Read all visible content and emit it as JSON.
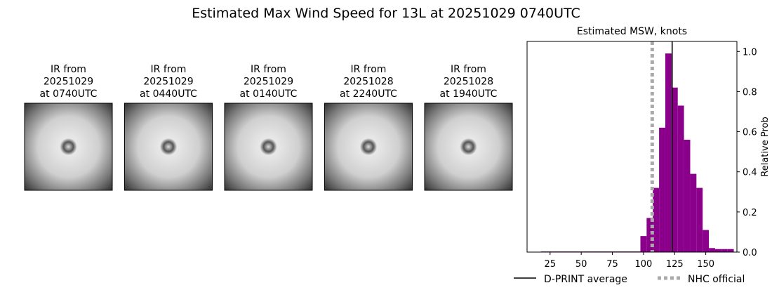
{
  "title": "Estimated Max Wind Speed for 13L at 20251029 0740UTC",
  "panels": [
    {
      "label": [
        "IR from",
        "20251029",
        "at 0740UTC"
      ]
    },
    {
      "label": [
        "IR from",
        "20251029",
        "at 0440UTC"
      ]
    },
    {
      "label": [
        "IR from",
        "20251029",
        "at 0140UTC"
      ]
    },
    {
      "label": [
        "IR from",
        "20251028",
        "at 2240UTC"
      ]
    },
    {
      "label": [
        "IR from",
        "20251028",
        "at 1940UTC"
      ]
    }
  ],
  "chart_data": {
    "type": "histogram",
    "title": "Estimated MSW, knots",
    "y_label": "Relative Prob",
    "color": "#8b008b",
    "bins": [
      17.5,
      22.5,
      27.5,
      32.5,
      37.5,
      42.5,
      47.5,
      52.5,
      57.5,
      62.5,
      67.5,
      72.5,
      77.5,
      82.5,
      87.5,
      92.5,
      97.5,
      102.5,
      107.5,
      112.5,
      117.5,
      122.5,
      127.5,
      132.5,
      137.5,
      142.5,
      147.5,
      152.5,
      157.5,
      162.5,
      167.5,
      172.5
    ],
    "counts": [
      0.003,
      0.003,
      0.003,
      0.003,
      0.003,
      0.003,
      0.003,
      0.003,
      0.003,
      0.003,
      0.003,
      0.003,
      0.003,
      0.003,
      0.003,
      0.003,
      0.08,
      0.17,
      0.32,
      0.62,
      0.99,
      0.82,
      0.73,
      0.56,
      0.39,
      0.32,
      0.11,
      0.02,
      0.015,
      0.015,
      0.015
    ],
    "xlim": [
      6.5,
      175
    ],
    "xticks": [
      25,
      50,
      75,
      100,
      125,
      150
    ],
    "ylim": [
      0,
      1.05
    ],
    "yticks": [
      {
        "value": 0,
        "label": "0.0"
      },
      0.2,
      0.4,
      0.6,
      0.8,
      {
        "value": 1,
        "label": "1.0"
      }
    ],
    "lines": [
      {
        "name": "D-PRINT average",
        "value": 123,
        "color": "#000000",
        "style": "solid"
      },
      {
        "name": "NHC official",
        "value": 107,
        "color": "#aaaaaa",
        "style": "dotted"
      }
    ]
  }
}
